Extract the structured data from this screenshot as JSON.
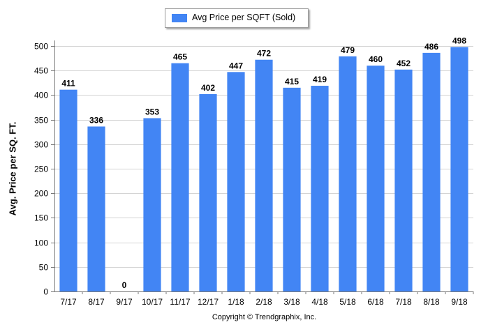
{
  "chart_data": {
    "type": "bar",
    "categories": [
      "7/17",
      "8/17",
      "9/17",
      "10/17",
      "11/17",
      "12/17",
      "1/18",
      "2/18",
      "3/18",
      "4/18",
      "5/18",
      "6/18",
      "7/18",
      "8/18",
      "9/18"
    ],
    "series": [
      {
        "name": "Avg Price per SQFT (Sold)",
        "values": [
          411,
          336,
          0,
          353,
          465,
          402,
          447,
          472,
          415,
          419,
          479,
          460,
          452,
          486,
          498
        ],
        "color": "#4285f4"
      }
    ],
    "ylabel": "Avg. Price per SQ. FT.",
    "xlabel": "",
    "ylim": [
      0,
      500
    ],
    "yticks": [
      0,
      50,
      100,
      150,
      200,
      250,
      300,
      350,
      400,
      450,
      500
    ],
    "grid": true,
    "legend": "top-center",
    "data_labels": true
  },
  "footer": {
    "copyright": "Copyright © Trendgraphix, Inc."
  },
  "colors": {
    "bar": "#4285f4",
    "grid": "#d4d4d4",
    "axis": "#7a7a7a"
  }
}
